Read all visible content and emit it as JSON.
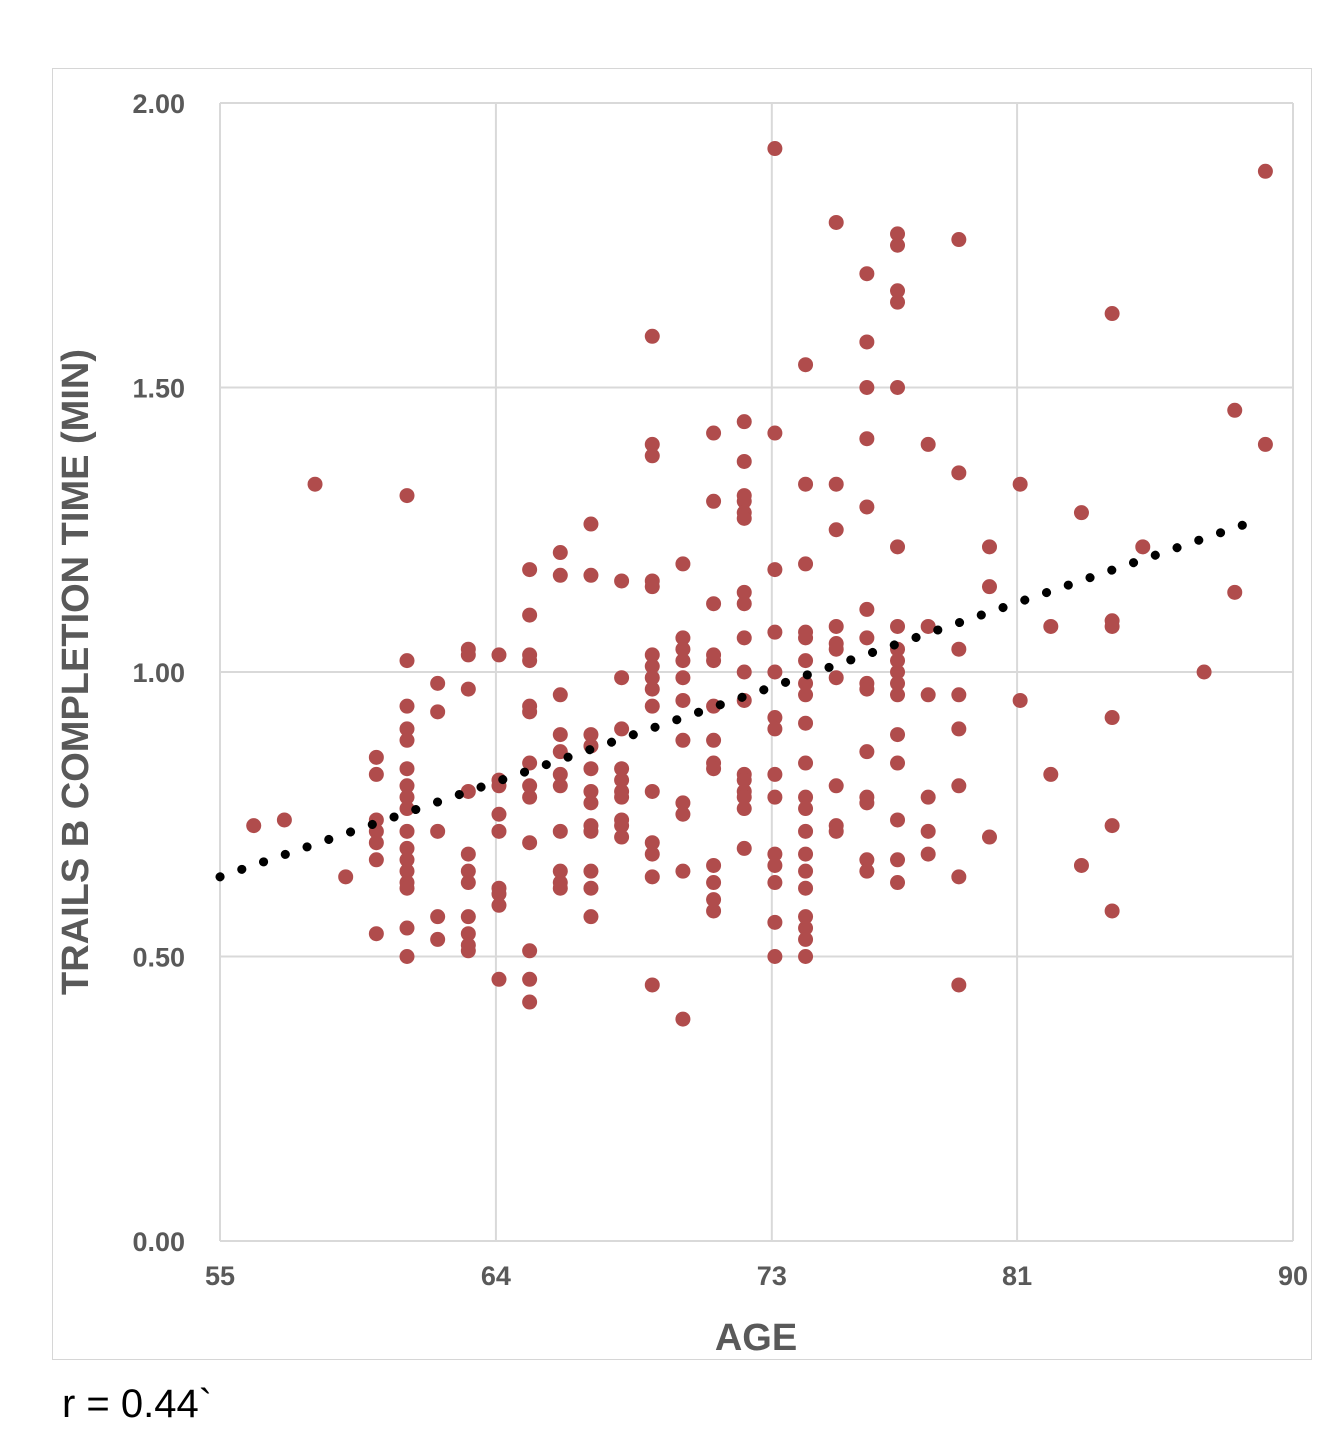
{
  "chart_data": {
    "type": "scatter",
    "title": "",
    "xlabel": "AGE",
    "ylabel": "TRAILS B COMPLETION TIME (MIN)",
    "xlim": [
      55,
      90
    ],
    "ylim": [
      0,
      2
    ],
    "x_ticks": [
      55,
      64,
      73,
      81,
      90
    ],
    "x_tick_labels": [
      "55",
      "64",
      "73",
      "81",
      "90"
    ],
    "y_ticks": [
      0,
      0.5,
      1.0,
      1.5,
      2.0
    ],
    "y_tick_labels": [
      "0.00",
      "0.50",
      "1.00",
      "1.50",
      "2.00"
    ],
    "grid": true,
    "legend": "none",
    "colors": {
      "points": "#b04c4c",
      "trendline": "#000000",
      "grid": "#d9d9d9",
      "text": "#595959"
    },
    "trendline": {
      "style": "dotted",
      "x": [
        55,
        89
      ],
      "y": [
        0.64,
        1.27
      ]
    },
    "points": [
      [
        56.1,
        0.73
      ],
      [
        57.1,
        0.74
      ],
      [
        58.1,
        1.33
      ],
      [
        59.1,
        0.64
      ],
      [
        60.1,
        0.85
      ],
      [
        60.1,
        0.82
      ],
      [
        60.1,
        0.74
      ],
      [
        60.1,
        0.72
      ],
      [
        60.1,
        0.7
      ],
      [
        60.1,
        0.67
      ],
      [
        60.1,
        0.54
      ],
      [
        61.1,
        1.31
      ],
      [
        61.1,
        1.02
      ],
      [
        61.1,
        0.94
      ],
      [
        61.1,
        0.9
      ],
      [
        61.1,
        0.88
      ],
      [
        61.1,
        0.83
      ],
      [
        61.1,
        0.8
      ],
      [
        61.1,
        0.78
      ],
      [
        61.1,
        0.76
      ],
      [
        61.1,
        0.72
      ],
      [
        61.1,
        0.69
      ],
      [
        61.1,
        0.67
      ],
      [
        61.1,
        0.65
      ],
      [
        61.1,
        0.63
      ],
      [
        61.1,
        0.62
      ],
      [
        61.1,
        0.55
      ],
      [
        61.1,
        0.5
      ],
      [
        62.1,
        0.98
      ],
      [
        62.1,
        0.93
      ],
      [
        62.1,
        0.72
      ],
      [
        62.1,
        0.57
      ],
      [
        62.1,
        0.53
      ],
      [
        63.1,
        1.04
      ],
      [
        63.1,
        1.03
      ],
      [
        63.1,
        0.97
      ],
      [
        63.1,
        0.79
      ],
      [
        63.1,
        0.68
      ],
      [
        63.1,
        0.65
      ],
      [
        63.1,
        0.63
      ],
      [
        63.1,
        0.57
      ],
      [
        63.1,
        0.54
      ],
      [
        63.1,
        0.52
      ],
      [
        63.1,
        0.51
      ],
      [
        64.1,
        1.03
      ],
      [
        64.1,
        0.81
      ],
      [
        64.1,
        0.8
      ],
      [
        64.1,
        0.75
      ],
      [
        64.1,
        0.72
      ],
      [
        64.1,
        0.62
      ],
      [
        64.1,
        0.61
      ],
      [
        64.1,
        0.59
      ],
      [
        64.1,
        0.46
      ],
      [
        65.1,
        1.18
      ],
      [
        65.1,
        1.1
      ],
      [
        65.1,
        1.03
      ],
      [
        65.1,
        1.02
      ],
      [
        65.1,
        0.94
      ],
      [
        65.1,
        0.93
      ],
      [
        65.1,
        0.84
      ],
      [
        65.1,
        0.8
      ],
      [
        65.1,
        0.78
      ],
      [
        65.1,
        0.7
      ],
      [
        65.1,
        0.51
      ],
      [
        65.1,
        0.46
      ],
      [
        65.1,
        0.42
      ],
      [
        66.1,
        1.21
      ],
      [
        66.1,
        1.17
      ],
      [
        66.1,
        0.96
      ],
      [
        66.1,
        0.89
      ],
      [
        66.1,
        0.86
      ],
      [
        66.1,
        0.82
      ],
      [
        66.1,
        0.8
      ],
      [
        66.1,
        0.72
      ],
      [
        66.1,
        0.65
      ],
      [
        66.1,
        0.63
      ],
      [
        66.1,
        0.62
      ],
      [
        67.1,
        1.26
      ],
      [
        67.1,
        1.17
      ],
      [
        67.1,
        0.89
      ],
      [
        67.1,
        0.87
      ],
      [
        67.1,
        0.83
      ],
      [
        67.1,
        0.79
      ],
      [
        67.1,
        0.77
      ],
      [
        67.1,
        0.73
      ],
      [
        67.1,
        0.72
      ],
      [
        67.1,
        0.65
      ],
      [
        67.1,
        0.62
      ],
      [
        67.1,
        0.57
      ],
      [
        68.1,
        1.16
      ],
      [
        68.1,
        0.99
      ],
      [
        68.1,
        0.9
      ],
      [
        68.1,
        0.83
      ],
      [
        68.1,
        0.81
      ],
      [
        68.1,
        0.79
      ],
      [
        68.1,
        0.78
      ],
      [
        68.1,
        0.74
      ],
      [
        68.1,
        0.73
      ],
      [
        68.1,
        0.71
      ],
      [
        69.1,
        1.59
      ],
      [
        69.1,
        1.4
      ],
      [
        69.1,
        1.38
      ],
      [
        69.1,
        1.16
      ],
      [
        69.1,
        1.15
      ],
      [
        69.1,
        1.03
      ],
      [
        69.1,
        1.01
      ],
      [
        69.1,
        0.99
      ],
      [
        69.1,
        0.97
      ],
      [
        69.1,
        0.94
      ],
      [
        69.1,
        0.79
      ],
      [
        69.1,
        0.7
      ],
      [
        69.1,
        0.68
      ],
      [
        69.1,
        0.64
      ],
      [
        69.1,
        0.45
      ],
      [
        70.1,
        1.19
      ],
      [
        70.1,
        1.06
      ],
      [
        70.1,
        1.04
      ],
      [
        70.1,
        1.02
      ],
      [
        70.1,
        0.99
      ],
      [
        70.1,
        0.95
      ],
      [
        70.1,
        0.88
      ],
      [
        70.1,
        0.77
      ],
      [
        70.1,
        0.75
      ],
      [
        70.1,
        0.65
      ],
      [
        70.1,
        0.39
      ],
      [
        71.1,
        1.42
      ],
      [
        71.1,
        1.3
      ],
      [
        71.1,
        1.12
      ],
      [
        71.1,
        1.03
      ],
      [
        71.1,
        1.02
      ],
      [
        71.1,
        0.94
      ],
      [
        71.1,
        0.88
      ],
      [
        71.1,
        0.84
      ],
      [
        71.1,
        0.83
      ],
      [
        71.1,
        0.66
      ],
      [
        71.1,
        0.63
      ],
      [
        71.1,
        0.6
      ],
      [
        71.1,
        0.58
      ],
      [
        72.1,
        1.44
      ],
      [
        72.1,
        1.37
      ],
      [
        72.1,
        1.31
      ],
      [
        72.1,
        1.3
      ],
      [
        72.1,
        1.28
      ],
      [
        72.1,
        1.27
      ],
      [
        72.1,
        1.14
      ],
      [
        72.1,
        1.12
      ],
      [
        72.1,
        1.06
      ],
      [
        72.1,
        1.0
      ],
      [
        72.1,
        0.95
      ],
      [
        72.1,
        0.82
      ],
      [
        72.1,
        0.81
      ],
      [
        72.1,
        0.79
      ],
      [
        72.1,
        0.78
      ],
      [
        72.1,
        0.76
      ],
      [
        72.1,
        0.69
      ],
      [
        73.1,
        1.92
      ],
      [
        73.1,
        1.42
      ],
      [
        73.1,
        1.18
      ],
      [
        73.1,
        1.07
      ],
      [
        73.1,
        1.0
      ],
      [
        73.1,
        0.92
      ],
      [
        73.1,
        0.9
      ],
      [
        73.1,
        0.82
      ],
      [
        73.1,
        0.78
      ],
      [
        73.1,
        0.68
      ],
      [
        73.1,
        0.66
      ],
      [
        73.1,
        0.63
      ],
      [
        73.1,
        0.56
      ],
      [
        73.1,
        0.5
      ],
      [
        74.1,
        1.54
      ],
      [
        74.1,
        1.33
      ],
      [
        74.1,
        1.19
      ],
      [
        74.1,
        1.07
      ],
      [
        74.1,
        1.06
      ],
      [
        74.1,
        1.02
      ],
      [
        74.1,
        0.98
      ],
      [
        74.1,
        0.96
      ],
      [
        74.1,
        0.91
      ],
      [
        74.1,
        0.84
      ],
      [
        74.1,
        0.78
      ],
      [
        74.1,
        0.76
      ],
      [
        74.1,
        0.72
      ],
      [
        74.1,
        0.68
      ],
      [
        74.1,
        0.65
      ],
      [
        74.1,
        0.62
      ],
      [
        74.1,
        0.57
      ],
      [
        74.1,
        0.55
      ],
      [
        74.1,
        0.53
      ],
      [
        74.1,
        0.5
      ],
      [
        75.1,
        1.79
      ],
      [
        75.1,
        1.33
      ],
      [
        75.1,
        1.25
      ],
      [
        75.1,
        1.08
      ],
      [
        75.1,
        1.05
      ],
      [
        75.1,
        1.04
      ],
      [
        75.1,
        0.99
      ],
      [
        75.1,
        0.8
      ],
      [
        75.1,
        0.73
      ],
      [
        75.1,
        0.72
      ],
      [
        76.1,
        1.7
      ],
      [
        76.1,
        1.58
      ],
      [
        76.1,
        1.5
      ],
      [
        76.1,
        1.41
      ],
      [
        76.1,
        1.29
      ],
      [
        76.1,
        1.11
      ],
      [
        76.1,
        1.06
      ],
      [
        76.1,
        0.98
      ],
      [
        76.1,
        0.97
      ],
      [
        76.1,
        0.86
      ],
      [
        76.1,
        0.78
      ],
      [
        76.1,
        0.77
      ],
      [
        76.1,
        0.67
      ],
      [
        76.1,
        0.65
      ],
      [
        77.1,
        1.77
      ],
      [
        77.1,
        1.75
      ],
      [
        77.1,
        1.67
      ],
      [
        77.1,
        1.65
      ],
      [
        77.1,
        1.5
      ],
      [
        77.1,
        1.22
      ],
      [
        77.1,
        1.08
      ],
      [
        77.1,
        1.04
      ],
      [
        77.1,
        1.02
      ],
      [
        77.1,
        1.0
      ],
      [
        77.1,
        0.98
      ],
      [
        77.1,
        0.96
      ],
      [
        77.1,
        0.89
      ],
      [
        77.1,
        0.84
      ],
      [
        77.1,
        0.74
      ],
      [
        77.1,
        0.67
      ],
      [
        77.1,
        0.63
      ],
      [
        78.1,
        1.4
      ],
      [
        78.1,
        1.08
      ],
      [
        78.1,
        0.96
      ],
      [
        78.1,
        0.78
      ],
      [
        78.1,
        0.72
      ],
      [
        78.1,
        0.68
      ],
      [
        79.1,
        1.76
      ],
      [
        79.1,
        1.35
      ],
      [
        79.1,
        1.04
      ],
      [
        79.1,
        0.96
      ],
      [
        79.1,
        0.9
      ],
      [
        79.1,
        0.8
      ],
      [
        79.1,
        0.64
      ],
      [
        79.1,
        0.45
      ],
      [
        80.1,
        1.22
      ],
      [
        80.1,
        1.15
      ],
      [
        80.1,
        0.71
      ],
      [
        81.1,
        1.33
      ],
      [
        81.1,
        0.95
      ],
      [
        82.1,
        1.08
      ],
      [
        82.1,
        0.82
      ],
      [
        83.1,
        1.28
      ],
      [
        83.1,
        0.66
      ],
      [
        84.1,
        1.63
      ],
      [
        84.1,
        1.09
      ],
      [
        84.1,
        1.08
      ],
      [
        84.1,
        0.92
      ],
      [
        84.1,
        0.73
      ],
      [
        84.1,
        0.58
      ],
      [
        85.1,
        1.22
      ],
      [
        87.1,
        1.0
      ],
      [
        88.1,
        1.46
      ],
      [
        88.1,
        1.14
      ],
      [
        89.1,
        1.88
      ],
      [
        89.1,
        1.4
      ]
    ]
  },
  "annotation": {
    "r_text": "r = 0.44`"
  }
}
